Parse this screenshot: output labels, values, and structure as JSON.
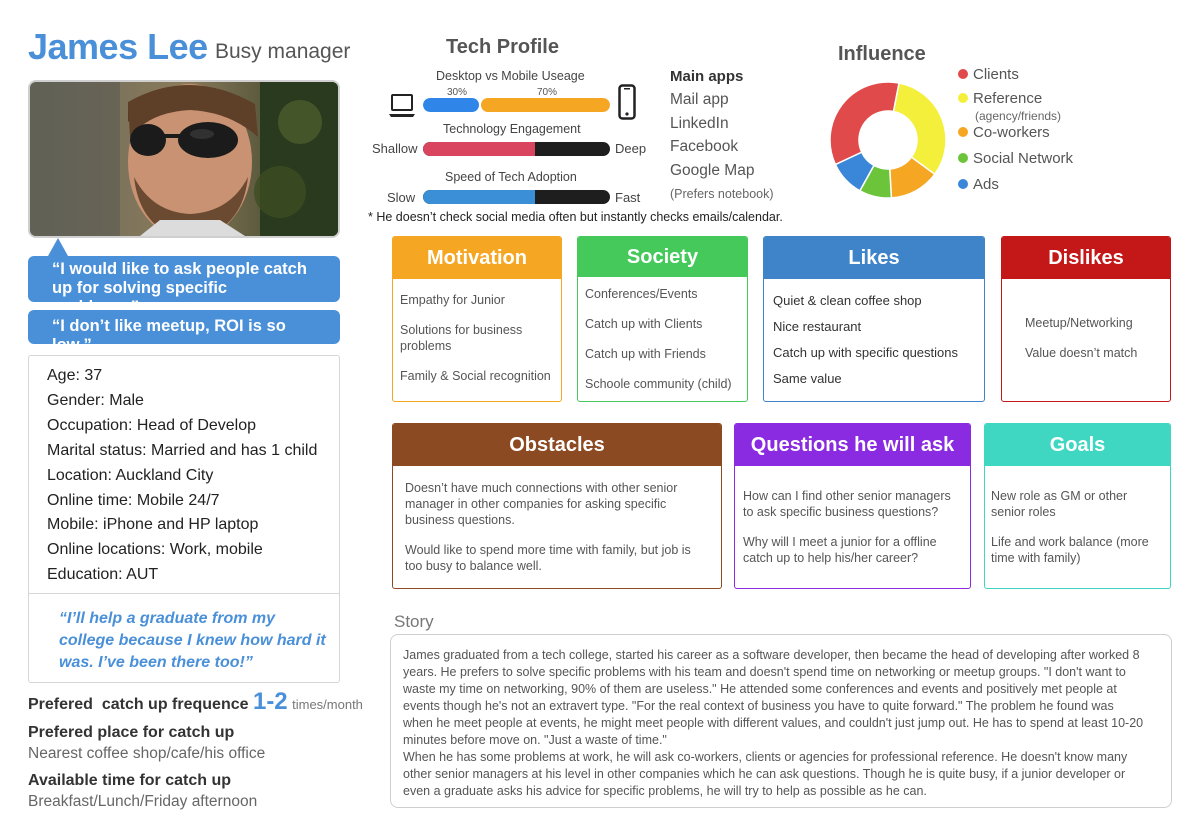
{
  "header": {
    "name": "James Lee",
    "role": "Busy manager"
  },
  "quotes": [
    "“I would like to ask people catch up for solving specific problems.”",
    "“I don’t like meetup, ROI is so low.”"
  ],
  "info": {
    "items": [
      "Age: 37",
      "Gender: Male",
      "Occupation: Head of Develop",
      "Marital status: Married and has 1 child",
      "Location: Auckland City",
      "Online time: Mobile 24/7",
      "Mobile: iPhone and HP laptop",
      "Online locations: Work, mobile",
      "Education: AUT"
    ],
    "quote": "“I’ll help a graduate from my college because I knew how hard it was. I’ve been there too!”"
  },
  "catchup": {
    "frequency_label": "Prefered  catch up frequence",
    "frequency_value": "1-2",
    "frequency_unit": "times/month",
    "place_label": "Prefered place for catch up",
    "place_value": "Nearest coffee shop/cafe/his office",
    "time_label": "Available time for catch up",
    "time_value": "Breakfast/Lunch/Friday afternoon"
  },
  "tech_profile": {
    "title": "Tech Profile",
    "usage": {
      "label": "Desktop vs Mobile Useage",
      "desktop_pct_label": "30%",
      "mobile_pct_label": "70%",
      "desktop_pct": 30,
      "mobile_pct": 70,
      "desktop_color": "#2f86e8",
      "mobile_color": "#f5a623"
    },
    "engagement": {
      "label": "Technology Engagement",
      "left": "Shallow",
      "right": "Deep",
      "level": 0.6,
      "color": "#d9455f"
    },
    "adoption": {
      "label": "Speed of Tech Adoption",
      "left": "Slow",
      "right": "Fast",
      "level": 0.6,
      "color": "#3a8fd6"
    },
    "note": "* He doesn’t check social media often but instantly checks emails/calendar."
  },
  "main_apps": {
    "title": "Main apps",
    "items": [
      "Mail app",
      "LinkedIn",
      "Facebook",
      "Google Map"
    ],
    "note": "(Prefers notebook)"
  },
  "influence": {
    "title": "Influence",
    "legend": [
      {
        "label": "Clients",
        "color": "#e04a4a"
      },
      {
        "label": "Reference",
        "sub": "(agency/friends)",
        "color": "#f3ef3a"
      },
      {
        "label": "Co-workers",
        "color": "#f5a623"
      },
      {
        "label": "Social Network",
        "color": "#6cc43a"
      },
      {
        "label": "Ads",
        "color": "#3a86d9"
      }
    ]
  },
  "chart_data": {
    "type": "pie",
    "title": "Influence",
    "categories": [
      "Clients",
      "Reference",
      "Co-workers",
      "Social Network",
      "Ads"
    ],
    "values": [
      35,
      32,
      14,
      9,
      10
    ],
    "colors": [
      "#e04a4a",
      "#f3ef3a",
      "#f5a623",
      "#6cc43a",
      "#3a86d9"
    ],
    "legend": "right"
  },
  "cards": {
    "motivation": {
      "title": "Motivation",
      "color": "#f5a623",
      "items": [
        "Empathy for Junior",
        "Solutions for business problems",
        "Family & Social recognition"
      ]
    },
    "society": {
      "title": "Society",
      "color": "#45c95a",
      "items": [
        "Conferences/Events",
        "Catch up with Clients",
        "Catch up with Friends",
        "Schoole community (child)"
      ]
    },
    "likes": {
      "title": "Likes",
      "color": "#3f83c9",
      "items": [
        "Quiet & clean coffee shop",
        "Nice restaurant",
        "Catch up with specific questions",
        "Same value"
      ]
    },
    "dislikes": {
      "title": "Dislikes",
      "color": "#c41818",
      "items": [
        "Meetup/Networking",
        "Value doesn’t match"
      ]
    },
    "obstacles": {
      "title": "Obstacles",
      "color": "#8b4a22",
      "items": [
        "Doesn’t have much connections with other senior manager in other companies for asking specific business questions.",
        "Would like to spend more time with family, but job is too busy to balance well."
      ]
    },
    "questions": {
      "title": "Questions he will ask",
      "color": "#8a2be2",
      "items": [
        "How can I find other senior managers to ask specific business questions?",
        "Why will I meet a junior for a offline catch up to help his/her career?"
      ]
    },
    "goals": {
      "title": "Goals",
      "color": "#3fd6c2",
      "items": [
        "New role as GM or other senior roles",
        "Life and work balance (more time with family)"
      ]
    }
  },
  "story": {
    "title": "Story",
    "lines": [
      "James graduated from a tech college, started his career as a software developer, then became the head of developing after worked 8",
      "years. He prefers to solve specific problems with his team and doesn't spend time on networking or meetup groups. \"I don't want to",
      "waste my time on networking, 90% of them are useless.\" He attended some conferences and events and positively met people at",
      "events though he's not an extravert type. \"For the real context of business you have to quite forward.\" The problem he found was",
      "when he meet people at events, he might meet people with different values, and couldn't just jump out. He has to spend at least 10-20",
      "minutes before move on. \"Just a waste of time.\"",
      "When he has some problems at work, he will ask co-workers, clients or agencies for professional reference. He doesn't know many",
      "other senior managers at his level in other companies which he can ask questions. Though he is quite busy, if a junior developer or",
      "even a graduate asks his advice for specific problems, he will try to help as possible as he can."
    ]
  }
}
